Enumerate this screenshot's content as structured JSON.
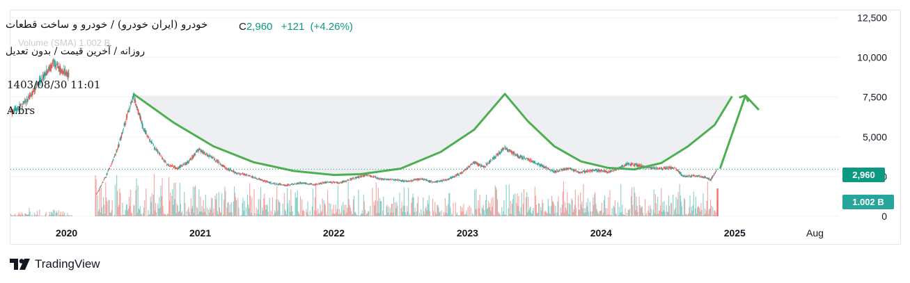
{
  "header": {
    "symbol_title": "خودرو (ایران خودرو) / خودرو و ساخت قطعات",
    "close_label": "C",
    "close_value": "2,960",
    "change": "+121",
    "change_pct": "(+4.26%)",
    "subtitle": "روزانه / آخرین قیمت / بدون تعدیل",
    "ghost_volume": "Volume (SMA)  1.002 B",
    "datetime": "1403/08/30 11:01",
    "ticker": "A.brs"
  },
  "badges": {
    "last_price": "2,960",
    "volume": "1.002 B"
  },
  "brand": {
    "name": "TradingView"
  },
  "colors": {
    "up": "#26a69a",
    "down": "#ef5350",
    "pattern": "#4caf50",
    "price_line": "#0b9981",
    "shade": "#e8e9ee"
  },
  "chart_data": {
    "type": "candlestick",
    "title": "",
    "xlabel": "",
    "ylabel": "",
    "x_ticks": [
      "2020",
      "2021",
      "2022",
      "2023",
      "2024",
      "2025",
      "Aug"
    ],
    "y_ticks": [
      "12,500",
      "10,000",
      "7,500",
      "5,000",
      "2,500",
      "0"
    ],
    "ylim": [
      0,
      13000
    ],
    "xlim": [
      2019.58,
      2025.78
    ],
    "last_price": 2960,
    "last_volume": "1.002 B",
    "price_path": [
      [
        2019.58,
        6500
      ],
      [
        2019.7,
        7200
      ],
      [
        2019.8,
        8500
      ],
      [
        2019.9,
        9600
      ],
      [
        2019.97,
        9100
      ],
      [
        2020.02,
        8900
      ],
      [
        2020.22,
        1300
      ],
      [
        2020.3,
        2600
      ],
      [
        2020.38,
        4200
      ],
      [
        2020.45,
        6200
      ],
      [
        2020.5,
        7600
      ],
      [
        2020.53,
        6800
      ],
      [
        2020.58,
        5400
      ],
      [
        2020.66,
        4300
      ],
      [
        2020.75,
        3300
      ],
      [
        2020.83,
        3000
      ],
      [
        2020.92,
        3500
      ],
      [
        2020.99,
        4200
      ],
      [
        2021.05,
        3900
      ],
      [
        2021.12,
        3500
      ],
      [
        2021.2,
        3000
      ],
      [
        2021.28,
        2700
      ],
      [
        2021.35,
        2600
      ],
      [
        2021.45,
        2300
      ],
      [
        2021.55,
        2050
      ],
      [
        2021.65,
        1950
      ],
      [
        2021.75,
        2100
      ],
      [
        2021.85,
        2000
      ],
      [
        2021.95,
        2150
      ],
      [
        2022.05,
        2100
      ],
      [
        2022.15,
        2400
      ],
      [
        2022.25,
        2600
      ],
      [
        2022.35,
        2350
      ],
      [
        2022.45,
        2300
      ],
      [
        2022.55,
        2200
      ],
      [
        2022.65,
        2350
      ],
      [
        2022.75,
        2150
      ],
      [
        2022.85,
        2300
      ],
      [
        2022.95,
        2700
      ],
      [
        2023.05,
        3400
      ],
      [
        2023.12,
        3100
      ],
      [
        2023.2,
        3700
      ],
      [
        2023.28,
        4300
      ],
      [
        2023.32,
        4100
      ],
      [
        2023.38,
        3800
      ],
      [
        2023.45,
        3600
      ],
      [
        2023.55,
        3200
      ],
      [
        2023.65,
        2800
      ],
      [
        2023.75,
        3000
      ],
      [
        2023.85,
        2750
      ],
      [
        2023.95,
        2900
      ],
      [
        2024.05,
        2800
      ],
      [
        2024.12,
        2950
      ],
      [
        2024.2,
        3300
      ],
      [
        2024.28,
        3200
      ],
      [
        2024.35,
        3050
      ],
      [
        2024.45,
        3000
      ],
      [
        2024.55,
        3050
      ],
      [
        2024.62,
        2500
      ],
      [
        2024.7,
        2550
      ],
      [
        2024.78,
        2450
      ],
      [
        2024.82,
        2300
      ],
      [
        2024.87,
        2960
      ]
    ],
    "pattern_line": [
      [
        2020.5,
        7700
      ],
      [
        2020.8,
        5900
      ],
      [
        2021.1,
        4400
      ],
      [
        2021.4,
        3400
      ],
      [
        2021.7,
        2850
      ],
      [
        2022.0,
        2600
      ],
      [
        2022.2,
        2650
      ],
      [
        2022.5,
        3000
      ],
      [
        2022.8,
        4050
      ],
      [
        2023.05,
        5450
      ],
      [
        2023.28,
        7700
      ],
      [
        2023.45,
        6000
      ],
      [
        2023.65,
        4400
      ],
      [
        2023.85,
        3450
      ],
      [
        2024.05,
        3050
      ],
      [
        2024.25,
        2950
      ],
      [
        2024.45,
        3350
      ],
      [
        2024.65,
        4400
      ],
      [
        2024.85,
        5750
      ],
      [
        2024.98,
        7550
      ]
    ],
    "projection_arrow": [
      [
        2024.89,
        3000
      ],
      [
        2025.08,
        7600
      ],
      [
        2025.18,
        6700
      ]
    ],
    "shaded_band": {
      "y_top": 7600,
      "x_start": 2020.5,
      "x_end": 2024.98
    }
  }
}
